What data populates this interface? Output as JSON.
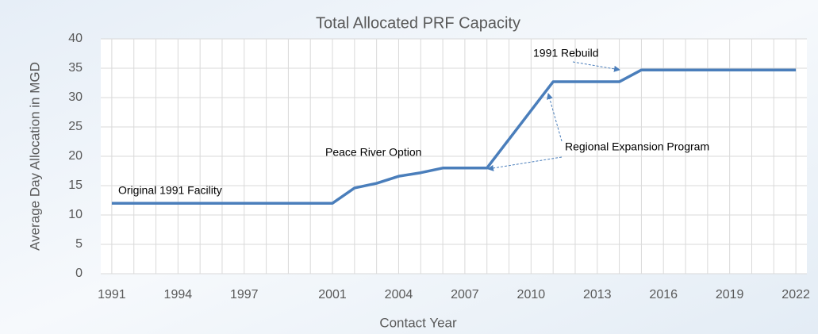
{
  "chart_data": {
    "type": "line",
    "title": "Total Allocated PRF Capacity",
    "x_label": "Contact Year",
    "y_label": "Average Day Allocation in MGD",
    "x": [
      1991,
      1992,
      1993,
      1994,
      1995,
      1996,
      1997,
      1998,
      1999,
      2000,
      2001,
      2002,
      2003,
      2004,
      2005,
      2006,
      2007,
      2008,
      2009,
      2010,
      2011,
      2012,
      2013,
      2014,
      2015,
      2016,
      2017,
      2018,
      2019,
      2020,
      2021,
      2022
    ],
    "series": [
      {
        "name": "Total Allocated PRF Capacity",
        "color": "#4a7ebb",
        "values": [
          12,
          12,
          12,
          12,
          12,
          12,
          12,
          12,
          12,
          12,
          12,
          14.6,
          15.4,
          16.6,
          17.2,
          18,
          18,
          18,
          22.9,
          27.8,
          32.7,
          32.7,
          32.7,
          32.7,
          34.7,
          34.7,
          34.7,
          34.7,
          34.7,
          34.7,
          34.7,
          34.7
        ]
      }
    ],
    "xlim": [
      1990.5,
      2022.5
    ],
    "xticks": [
      1991,
      1994,
      1997,
      2001,
      2004,
      2007,
      2010,
      2013,
      2016,
      2019,
      2022
    ],
    "ylim": [
      0,
      40
    ],
    "yticks": [
      0,
      5,
      10,
      15,
      20,
      25,
      30,
      35,
      40
    ],
    "grid": true,
    "annotations": [
      "Original 1991 Facility",
      "Peace River Option",
      "1991 Rebuild",
      "Regional Expansion Program"
    ]
  }
}
